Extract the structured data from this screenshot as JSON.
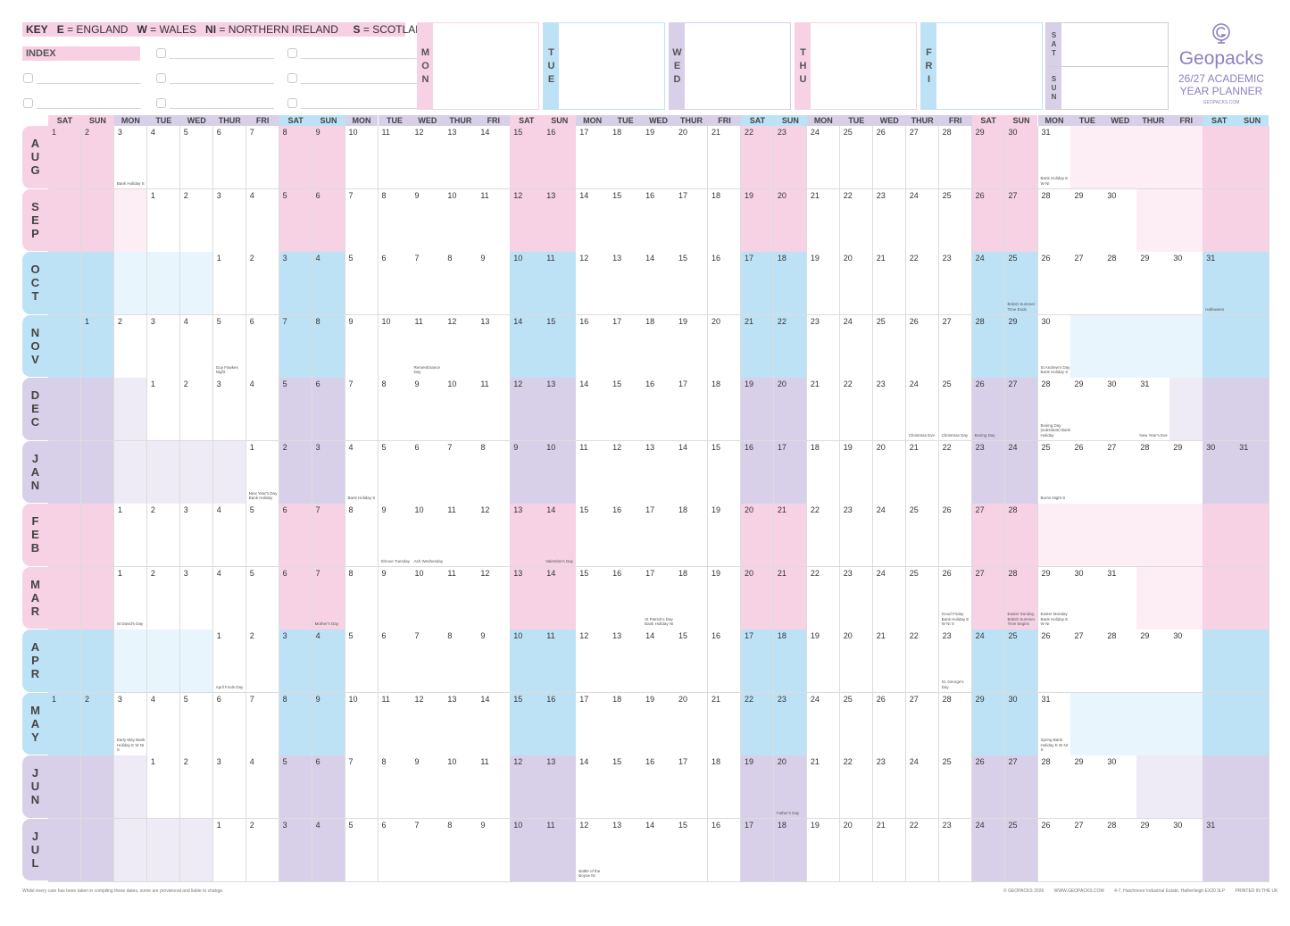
{
  "key": {
    "label": "KEY",
    "items": [
      {
        "code": "E",
        "text": "= ENGLAND"
      },
      {
        "code": "W",
        "text": "= WALES"
      },
      {
        "code": "NI",
        "text": "= NORTHERN IRELAND"
      },
      {
        "code": "S",
        "text": "= SCOTLAND"
      }
    ]
  },
  "index_label": "INDEX",
  "weekdays_box": [
    "MON",
    "TUE",
    "WED",
    "THU",
    "FRI"
  ],
  "weekend_box": [
    "SAT",
    "SUN"
  ],
  "brand": {
    "name": "Geopacks",
    "title_line1": "26/27 ACADEMIC",
    "title_line2": "YEAR PLANNER",
    "url": "GEOPACKS.COM"
  },
  "columns": [
    "SAT",
    "SUN",
    "MON",
    "TUE",
    "WED",
    "THUR",
    "FRI",
    "SAT",
    "SUN",
    "MON",
    "TUE",
    "WED",
    "THUR",
    "FRI",
    "SAT",
    "SUN",
    "MON",
    "TUE",
    "WED",
    "THUR",
    "FRI",
    "SAT",
    "SUN",
    "MON",
    "TUE",
    "WED",
    "THUR",
    "FRI",
    "SAT",
    "SUN",
    "MON",
    "TUE",
    "WED",
    "THUR",
    "FRI",
    "SAT",
    "SUN"
  ],
  "months": [
    {
      "name": "AUG",
      "start": 0,
      "days": 31,
      "theme": "pink"
    },
    {
      "name": "SEP",
      "start": 3,
      "days": 30,
      "theme": "pink"
    },
    {
      "name": "OCT",
      "start": 5,
      "days": 31,
      "theme": "blue"
    },
    {
      "name": "NOV",
      "start": 1,
      "days": 30,
      "theme": "blue"
    },
    {
      "name": "DEC",
      "start": 3,
      "days": 31,
      "theme": "purple"
    },
    {
      "name": "JAN",
      "start": 6,
      "days": 31,
      "theme": "purple"
    },
    {
      "name": "FEB",
      "start": 2,
      "days": 28,
      "theme": "pink"
    },
    {
      "name": "MAR",
      "start": 2,
      "days": 31,
      "theme": "pink"
    },
    {
      "name": "APR",
      "start": 5,
      "days": 30,
      "theme": "blue"
    },
    {
      "name": "MAY",
      "start": 0,
      "days": 31,
      "theme": "blue"
    },
    {
      "name": "JUN",
      "start": 3,
      "days": 30,
      "theme": "purple"
    },
    {
      "name": "JUL",
      "start": 5,
      "days": 31,
      "theme": "purple"
    }
  ],
  "holidays": [
    {
      "m": 0,
      "d": 3,
      "text": "Bank Holiday S"
    },
    {
      "m": 0,
      "d": 31,
      "text": "Bank Holiday E W NI"
    },
    {
      "m": 2,
      "d": 25,
      "text": "British Summer Time Ends"
    },
    {
      "m": 2,
      "d": 31,
      "text": "Halloween"
    },
    {
      "m": 3,
      "d": 5,
      "text": "Guy Fawkes Night"
    },
    {
      "m": 3,
      "d": 11,
      "text": "Remembrance Day"
    },
    {
      "m": 3,
      "d": 30,
      "text": "St Andrew's Day Bank Holiday S"
    },
    {
      "m": 4,
      "d": 24,
      "text": "Christmas Eve"
    },
    {
      "m": 4,
      "d": 25,
      "text": "Christmas Day"
    },
    {
      "m": 4,
      "d": 26,
      "text": "Boxing Day"
    },
    {
      "m": 4,
      "d": 28,
      "text": "Boxing Day (substitute) Bank Holiday"
    },
    {
      "m": 4,
      "d": 31,
      "text": "New Year's Eve"
    },
    {
      "m": 5,
      "d": 1,
      "text": "New Year's Day Bank Holiday"
    },
    {
      "m": 5,
      "d": 4,
      "text": "Bank Holiday S"
    },
    {
      "m": 5,
      "d": 25,
      "text": "Burns Night S"
    },
    {
      "m": 6,
      "d": 9,
      "text": "Shrove Tuesday"
    },
    {
      "m": 6,
      "d": 10,
      "text": "Ash Wednesday"
    },
    {
      "m": 6,
      "d": 14,
      "text": "Valentine's Day"
    },
    {
      "m": 7,
      "d": 1,
      "text": "St David's Day"
    },
    {
      "m": 7,
      "d": 7,
      "text": "Mother's Day"
    },
    {
      "m": 7,
      "d": 17,
      "text": "St Patrick's Day Bank Holiday NI"
    },
    {
      "m": 7,
      "d": 26,
      "text": "Good Friday Bank Holiday E W NI S"
    },
    {
      "m": 7,
      "d": 28,
      "text": "Easter Sunday, British Summer Time begins"
    },
    {
      "m": 7,
      "d": 29,
      "text": "Easter Monday Bank Holiday E W NI"
    },
    {
      "m": 8,
      "d": 1,
      "text": "April Fools Day"
    },
    {
      "m": 8,
      "d": 23,
      "text": "St. George's Day"
    },
    {
      "m": 9,
      "d": 3,
      "text": "Early May Bank Holiday E W NI S"
    },
    {
      "m": 9,
      "d": 31,
      "text": "Spring Bank Holiday E W NI S"
    },
    {
      "m": 10,
      "d": 20,
      "text": "Father's Day"
    },
    {
      "m": 11,
      "d": 12,
      "text": "Battle of the Boyne NI"
    }
  ],
  "colors": {
    "pink": {
      "strong": "#f6d2e4",
      "light": "#fdeef5"
    },
    "blue": {
      "strong": "#bde2f6",
      "light": "#e8f5fc"
    },
    "purple": {
      "strong": "#d8d0e8",
      "light": "#efebf6"
    },
    "header_pink": "#f6d2e4",
    "header_blue": "#bde2f6",
    "header_purple": "#d8d0e8",
    "brand": "#8e7fc0"
  },
  "disclaimer": "Whilst every care has been taken in compiling these dates, some are provisional and liable to change.",
  "footer": [
    "© GEOPACKS 2026",
    "WWW.GEOPACKS.COM",
    "4-7, Hatchmoor Industrial Estate, Hatherleigh EX20 3LP",
    "PRINTED IN THE UK"
  ]
}
